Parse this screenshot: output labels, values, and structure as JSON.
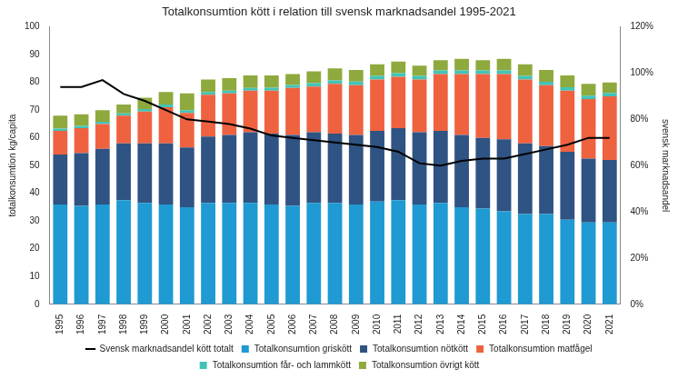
{
  "chart_data": {
    "type": "bar",
    "title": "Totalkonsumtion kött i relation till svensk marknadsandel 1995-2021",
    "y_label": "totalkonsumtion kg/capita",
    "y2_label": "svensk marknadsandel",
    "categories": [
      "1995",
      "1996",
      "1997",
      "1998",
      "1999",
      "2000",
      "2001",
      "2002",
      "2003",
      "2004",
      "2005",
      "2006",
      "2007",
      "2008",
      "2009",
      "2010",
      "2011",
      "2012",
      "2013",
      "2014",
      "2015",
      "2016",
      "2017",
      "2018",
      "2019",
      "2020",
      "2021"
    ],
    "stacked": true,
    "grid": false,
    "legend": "bottom",
    "ylim": [
      0,
      100
    ],
    "yticks": [
      0,
      10,
      20,
      30,
      40,
      50,
      60,
      70,
      80,
      90,
      100
    ],
    "y2lim": [
      0,
      120
    ],
    "y2ticks": [
      {
        "value": 0,
        "label": "0%"
      },
      {
        "value": 20,
        "label": "20%"
      },
      {
        "value": 40,
        "label": "40%"
      },
      {
        "value": 60,
        "label": "60%"
      },
      {
        "value": 80,
        "label": "80%"
      },
      {
        "value": 100,
        "label": "100%"
      },
      {
        "value": 120,
        "label": "120%"
      }
    ],
    "series": [
      {
        "name": "Totalkonsumtion griskött",
        "type": "bar",
        "color": "#1f9ad2",
        "values": [
          36,
          35.5,
          36,
          37.5,
          36.5,
          36,
          35,
          36.5,
          36.5,
          36.5,
          36,
          35.5,
          36.5,
          36.5,
          36,
          37,
          37.5,
          36,
          36.5,
          35,
          34.5,
          33.5,
          32.5,
          32.5,
          30.5,
          29.5,
          29.5
        ]
      },
      {
        "name": "Totalkonsumtion nötkött",
        "type": "bar",
        "color": "#2f5383",
        "values": [
          18,
          19,
          20,
          20.5,
          21.5,
          22,
          21.5,
          24,
          24.5,
          25.5,
          25.5,
          25.5,
          25.5,
          25,
          25,
          25.5,
          26,
          26,
          26,
          26,
          25.5,
          26,
          25.5,
          24.5,
          24.5,
          23,
          22.5
        ]
      },
      {
        "name": "Totalkonsumtion matfågel",
        "type": "bar",
        "color": "#ef6240",
        "values": [
          8.5,
          9,
          9,
          10,
          11.5,
          13,
          12.5,
          15,
          15,
          15,
          15.5,
          17,
          16.5,
          18,
          18,
          18.5,
          18.5,
          19,
          20.5,
          22,
          23,
          23.5,
          23,
          22,
          22,
          21.5,
          23
        ]
      },
      {
        "name": "Totalkonsumtion får- och lammkött",
        "type": "bar",
        "color": "#43c3b6",
        "values": [
          0.8,
          0.8,
          0.8,
          0.8,
          0.9,
          1.0,
          1.0,
          1.0,
          1.0,
          1.0,
          1.1,
          1.1,
          1.2,
          1.2,
          1.3,
          1.3,
          1.3,
          1.3,
          1.3,
          1.3,
          1.3,
          1.3,
          1.3,
          1.2,
          1.2,
          1.2,
          1.2
        ]
      },
      {
        "name": "Totalkonsumtion övrigt kött",
        "type": "bar",
        "color": "#8ea93d",
        "values": [
          4.7,
          4.2,
          4.2,
          3.2,
          4.1,
          4.5,
          6,
          4.5,
          4.5,
          4.5,
          4.4,
          3.9,
          4.3,
          4.3,
          4.2,
          4.2,
          4.2,
          3.7,
          3.7,
          4.2,
          3.7,
          4.2,
          4.2,
          4.3,
          4.3,
          4.3,
          3.8
        ]
      },
      {
        "name": "Svensk marknadsandel kött totalt",
        "type": "line",
        "axis": "y2",
        "color": "#000000",
        "values": [
          94,
          94,
          97,
          91,
          88,
          84,
          80,
          79,
          78,
          76,
          73,
          72,
          71,
          70,
          69,
          68,
          66,
          61,
          60,
          62,
          63,
          63,
          65,
          67,
          69,
          72,
          72
        ]
      }
    ]
  }
}
